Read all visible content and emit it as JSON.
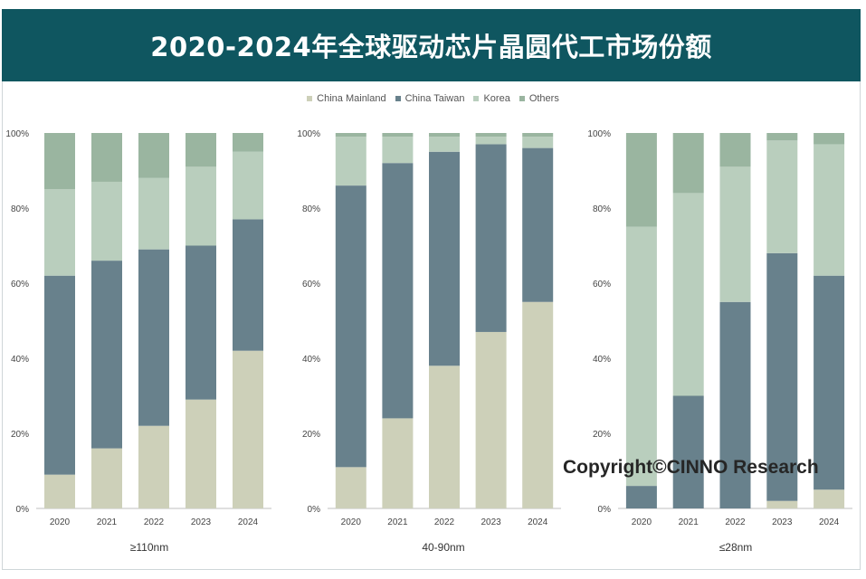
{
  "title": "2020-2024年全球驱动芯片晶圆代工市场份额",
  "legend": [
    {
      "name": "China Mainland",
      "color": "#cdd0b9"
    },
    {
      "name": "China Taiwan",
      "color": "#68818c"
    },
    {
      "name": "Korea",
      "color": "#b9cebd"
    },
    {
      "name": "Others",
      "color": "#9ab5a0"
    }
  ],
  "watermark": "Copyright©CINNO Research",
  "chart_data": [
    {
      "type": "bar",
      "stacked": true,
      "title": "≥110nm",
      "categories": [
        "2020",
        "2021",
        "2022",
        "2023",
        "2024"
      ],
      "ylim": [
        0,
        100
      ],
      "yticks": [
        "0%",
        "20%",
        "40%",
        "60%",
        "80%",
        "100%"
      ],
      "series": [
        {
          "name": "China Mainland",
          "values": [
            9,
            16,
            22,
            29,
            42
          ]
        },
        {
          "name": "China Taiwan",
          "values": [
            53,
            50,
            47,
            41,
            35
          ]
        },
        {
          "name": "Korea",
          "values": [
            23,
            21,
            19,
            21,
            18
          ]
        },
        {
          "name": "Others",
          "values": [
            15,
            13,
            12,
            9,
            5
          ]
        }
      ]
    },
    {
      "type": "bar",
      "stacked": true,
      "title": "40-90nm",
      "categories": [
        "2020",
        "2021",
        "2022",
        "2023",
        "2024"
      ],
      "ylim": [
        0,
        100
      ],
      "yticks": [
        "0%",
        "20%",
        "40%",
        "60%",
        "80%",
        "100%"
      ],
      "series": [
        {
          "name": "China Mainland",
          "values": [
            11,
            24,
            38,
            47,
            55
          ]
        },
        {
          "name": "China Taiwan",
          "values": [
            75,
            68,
            57,
            50,
            41
          ]
        },
        {
          "name": "Korea",
          "values": [
            13,
            7,
            4,
            2,
            3
          ]
        },
        {
          "name": "Others",
          "values": [
            1,
            1,
            1,
            1,
            1
          ]
        }
      ]
    },
    {
      "type": "bar",
      "stacked": true,
      "title": "≤28nm",
      "categories": [
        "2020",
        "2021",
        "2022",
        "2023",
        "2024"
      ],
      "ylim": [
        0,
        100
      ],
      "yticks": [
        "0%",
        "20%",
        "40%",
        "60%",
        "80%",
        "100%"
      ],
      "series": [
        {
          "name": "China Mainland",
          "values": [
            0,
            0,
            0,
            2,
            5
          ]
        },
        {
          "name": "China Taiwan",
          "values": [
            6,
            30,
            55,
            66,
            57
          ]
        },
        {
          "name": "Korea",
          "values": [
            69,
            54,
            36,
            30,
            35
          ]
        },
        {
          "name": "Others",
          "values": [
            25,
            16,
            9,
            2,
            3
          ]
        }
      ]
    }
  ]
}
